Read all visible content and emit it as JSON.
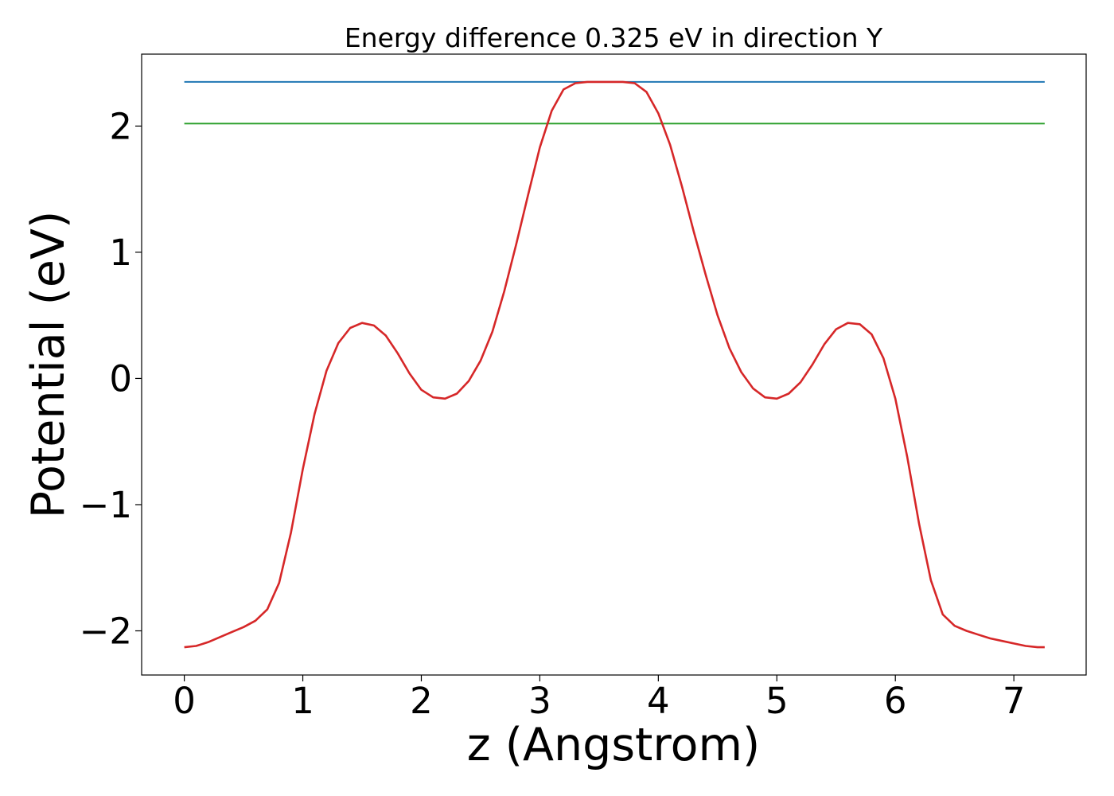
{
  "chart_data": {
    "type": "line",
    "title": "Energy difference 0.325 eV in direction Y",
    "xlabel": "z (Angstrom)",
    "ylabel": "Potential (eV)",
    "xlim": [
      -0.36,
      7.61
    ],
    "ylim": [
      -2.35,
      2.57
    ],
    "grid": false,
    "xticks": [
      0,
      1,
      2,
      3,
      4,
      5,
      6,
      7
    ],
    "yticks": [
      -2,
      -1,
      0,
      1,
      2
    ],
    "xtick_labels": [
      "0",
      "1",
      "2",
      "3",
      "4",
      "5",
      "6",
      "7"
    ],
    "ytick_labels": [
      "−2",
      "−1",
      "0",
      "1",
      "2"
    ],
    "series": [
      {
        "color": "#d62728",
        "x": [
          0,
          0.1,
          0.2,
          0.3,
          0.4,
          0.5,
          0.6,
          0.7,
          0.8,
          0.9,
          1.0,
          1.1,
          1.2,
          1.3,
          1.4,
          1.5,
          1.6,
          1.7,
          1.8,
          1.9,
          2.0,
          2.1,
          2.2,
          2.3,
          2.4,
          2.5,
          2.6,
          2.7,
          2.8,
          2.9,
          3.0,
          3.1,
          3.2,
          3.3,
          3.4,
          3.5,
          3.6,
          3.7,
          3.8,
          3.9,
          4.0,
          4.1,
          4.2,
          4.3,
          4.4,
          4.5,
          4.6,
          4.7,
          4.8,
          4.9,
          5.0,
          5.1,
          5.2,
          5.3,
          5.4,
          5.5,
          5.6,
          5.7,
          5.8,
          5.9,
          6.0,
          6.1,
          6.2,
          6.3,
          6.4,
          6.5,
          6.6,
          6.7,
          6.8,
          6.9,
          7.0,
          7.1,
          7.2,
          7.26
        ],
        "values": [
          -2.13,
          -2.12,
          -2.09,
          -2.05,
          -2.01,
          -1.97,
          -1.92,
          -1.83,
          -1.62,
          -1.22,
          -0.72,
          -0.28,
          0.06,
          0.28,
          0.4,
          0.44,
          0.42,
          0.34,
          0.2,
          0.04,
          -0.09,
          -0.15,
          -0.16,
          -0.12,
          -0.02,
          0.14,
          0.37,
          0.69,
          1.06,
          1.45,
          1.83,
          2.12,
          2.29,
          2.34,
          2.35,
          2.35,
          2.35,
          2.35,
          2.34,
          2.27,
          2.1,
          1.85,
          1.52,
          1.16,
          0.82,
          0.5,
          0.24,
          0.05,
          -0.08,
          -0.15,
          -0.16,
          -0.12,
          -0.03,
          0.11,
          0.27,
          0.39,
          0.44,
          0.43,
          0.35,
          0.16,
          -0.16,
          -0.62,
          -1.15,
          -1.6,
          -1.87,
          -1.96,
          -2.0,
          -2.03,
          -2.06,
          -2.08,
          -2.1,
          -2.12,
          -2.13,
          -2.13
        ]
      },
      {
        "color": "#1f77b4",
        "x": [
          0,
          7.26
        ],
        "values": [
          2.35,
          2.35
        ]
      },
      {
        "color": "#2ca02c",
        "x": [
          0,
          7.26
        ],
        "values": [
          2.02,
          2.02
        ]
      }
    ]
  }
}
